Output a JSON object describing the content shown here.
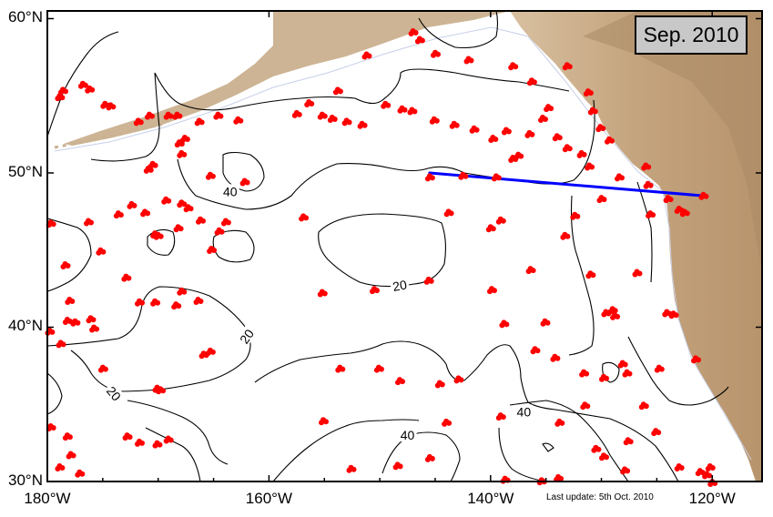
{
  "title_box": "Sep. 2010",
  "footer_note": "Last update: 5th Oct. 2010",
  "colors": {
    "float_marker": "#ff0000",
    "section_line": "#0000ff",
    "land": "#c8aa86",
    "land_high": "#a98a66",
    "contour": "#000000",
    "coastline_bathy": "#c8d0e8"
  },
  "map": {
    "lon_range": [
      -180,
      -115.5
    ],
    "lat_range": [
      30,
      60.5
    ],
    "lat_ticks": [
      {
        "lat": 60,
        "label": "60°N"
      },
      {
        "lat": 50,
        "label": "50°N"
      },
      {
        "lat": 40,
        "label": "40°N"
      },
      {
        "lat": 30,
        "label": "30°N"
      }
    ],
    "lon_ticks": [
      {
        "lon": -180,
        "label": "180°W"
      },
      {
        "lon": -160,
        "label": "160°W"
      },
      {
        "lon": -140,
        "label": "140°W"
      },
      {
        "lon": -120,
        "label": "120°W"
      }
    ],
    "contour_labels": [
      {
        "text": "40",
        "lon": -163.5,
        "lat": 48.8,
        "angle": 0
      },
      {
        "text": "20",
        "lon": -148.2,
        "lat": 42.7,
        "angle": -10
      },
      {
        "text": "20",
        "lon": -162.0,
        "lat": 39.4,
        "angle": -55
      },
      {
        "text": "20",
        "lon": -174.0,
        "lat": 35.7,
        "angle": 50
      },
      {
        "text": "40",
        "lon": -137.0,
        "lat": 34.5,
        "angle": 0
      },
      {
        "text": "40",
        "lon": -147.5,
        "lat": 33.0,
        "angle": 0
      }
    ],
    "section_line": {
      "start": [
        -145.5,
        50.0
      ],
      "end": [
        -120.5,
        48.5
      ]
    },
    "floats": [
      [
        -179.7,
        46.8
      ],
      [
        -178.6,
        55.4
      ],
      [
        -178.9,
        55.0
      ],
      [
        -176.8,
        55.8
      ],
      [
        -176.2,
        55.5
      ],
      [
        -174.8,
        54.5
      ],
      [
        -174.3,
        54.4
      ],
      [
        -171.8,
        53.4
      ],
      [
        -170.8,
        53.8
      ],
      [
        -169.1,
        53.8
      ],
      [
        -168.3,
        53.8
      ],
      [
        -168.1,
        52.0
      ],
      [
        -167.6,
        52.3
      ],
      [
        -167.9,
        51.3
      ],
      [
        -166.3,
        53.4
      ],
      [
        -164.6,
        53.8
      ],
      [
        -162.8,
        53.5
      ],
      [
        -165.3,
        49.9
      ],
      [
        -162.2,
        49.5
      ],
      [
        -170.5,
        50.6
      ],
      [
        -170.9,
        50.3
      ],
      [
        -172.4,
        48.0
      ],
      [
        -173.6,
        47.4
      ],
      [
        -171.2,
        47.5
      ],
      [
        -169.3,
        48.3
      ],
      [
        -167.9,
        48.1
      ],
      [
        -167.3,
        47.8
      ],
      [
        -176.3,
        46.9
      ],
      [
        -175.2,
        45.0
      ],
      [
        -170.3,
        46.1
      ],
      [
        -170.0,
        46.0
      ],
      [
        -168.2,
        46.5
      ],
      [
        -166.2,
        47.0
      ],
      [
        -163.9,
        46.9
      ],
      [
        -164.5,
        46.3
      ],
      [
        -165.2,
        45.1
      ],
      [
        -178.4,
        44.1
      ],
      [
        -178.0,
        41.8
      ],
      [
        -178.2,
        40.5
      ],
      [
        -177.5,
        40.4
      ],
      [
        -176.1,
        40.6
      ],
      [
        -175.8,
        40.0
      ],
      [
        -172.9,
        43.3
      ],
      [
        -170.3,
        41.7
      ],
      [
        -171.7,
        41.7
      ],
      [
        -168.4,
        41.5
      ],
      [
        -166.4,
        41.8
      ],
      [
        -167.9,
        42.4
      ],
      [
        -179.8,
        39.8
      ],
      [
        -178.8,
        39.0
      ],
      [
        -175.0,
        37.4
      ],
      [
        -169.8,
        36.0
      ],
      [
        -165.9,
        38.3
      ],
      [
        -165.3,
        38.5
      ],
      [
        -170.1,
        36.1
      ],
      [
        -172.8,
        33.0
      ],
      [
        -171.7,
        32.6
      ],
      [
        -170.1,
        32.5
      ],
      [
        -169.1,
        32.8
      ],
      [
        -179.7,
        33.6
      ],
      [
        -178.2,
        33.0
      ],
      [
        -177.9,
        31.8
      ],
      [
        -178.9,
        31.0
      ],
      [
        -177.1,
        30.6
      ],
      [
        -155.2,
        53.8
      ],
      [
        -154.3,
        53.6
      ],
      [
        -153.0,
        53.4
      ],
      [
        -151.6,
        53.2
      ],
      [
        -149.5,
        54.5
      ],
      [
        -148.0,
        54.2
      ],
      [
        -147.1,
        54.1
      ],
      [
        -145.1,
        53.5
      ],
      [
        -143.3,
        53.2
      ],
      [
        -141.5,
        52.9
      ],
      [
        -139.8,
        52.3
      ],
      [
        -138.0,
        51.0
      ],
      [
        -136.5,
        52.6
      ],
      [
        -135.3,
        53.6
      ],
      [
        -134.0,
        52.4
      ],
      [
        -133.1,
        51.7
      ],
      [
        -131.8,
        51.3
      ],
      [
        -131.1,
        50.5
      ],
      [
        -130.1,
        53.0
      ],
      [
        -129.3,
        52.2
      ],
      [
        -128.4,
        49.8
      ],
      [
        -126.0,
        50.5
      ],
      [
        -125.8,
        49.3
      ],
      [
        -124.0,
        48.4
      ],
      [
        -123.0,
        47.7
      ],
      [
        -122.5,
        47.5
      ],
      [
        -120.8,
        48.6
      ],
      [
        -145.0,
        57.8
      ],
      [
        -142.0,
        57.4
      ],
      [
        -138.0,
        57.0
      ],
      [
        -133.1,
        57.0
      ],
      [
        -131.2,
        55.3
      ],
      [
        -130.8,
        54.1
      ],
      [
        -134.8,
        54.3
      ],
      [
        -147.0,
        59.2
      ],
      [
        -146.4,
        58.7
      ],
      [
        -151.2,
        57.7
      ],
      [
        -153.8,
        55.4
      ],
      [
        -156.4,
        54.6
      ],
      [
        -157.5,
        53.9
      ],
      [
        -138.6,
        52.8
      ],
      [
        -137.5,
        51.2
      ],
      [
        -136.3,
        56.0
      ],
      [
        -145.5,
        49.8
      ],
      [
        -142.5,
        49.9
      ],
      [
        -139.5,
        49.8
      ],
      [
        -130.0,
        48.4
      ],
      [
        -125.6,
        47.4
      ],
      [
        -132.4,
        47.3
      ],
      [
        -133.3,
        46.0
      ],
      [
        -139.1,
        47.0
      ],
      [
        -140.0,
        46.5
      ],
      [
        -143.8,
        47.5
      ],
      [
        -156.9,
        47.2
      ],
      [
        -155.2,
        42.3
      ],
      [
        -150.5,
        42.5
      ],
      [
        -145.6,
        43.1
      ],
      [
        -139.9,
        42.5
      ],
      [
        -136.4,
        43.8
      ],
      [
        -135.1,
        40.4
      ],
      [
        -138.8,
        40.3
      ],
      [
        -131.0,
        43.5
      ],
      [
        -129.6,
        41.0
      ],
      [
        -129.0,
        41.2
      ],
      [
        -128.8,
        40.8
      ],
      [
        -126.8,
        43.6
      ],
      [
        -124.1,
        41.0
      ],
      [
        -123.5,
        40.9
      ],
      [
        -153.6,
        37.4
      ],
      [
        -150.1,
        37.4
      ],
      [
        -148.2,
        36.6
      ],
      [
        -144.6,
        36.4
      ],
      [
        -142.9,
        36.7
      ],
      [
        -136.0,
        38.6
      ],
      [
        -134.2,
        38.1
      ],
      [
        -131.6,
        37.1
      ],
      [
        -129.8,
        36.8
      ],
      [
        -128.1,
        37.7
      ],
      [
        -127.7,
        37.1
      ],
      [
        -124.8,
        37.4
      ],
      [
        -121.5,
        38.0
      ],
      [
        -131.5,
        35.0
      ],
      [
        -126.2,
        35.0
      ],
      [
        -155.1,
        34.0
      ],
      [
        -144.0,
        33.9
      ],
      [
        -139.1,
        34.3
      ],
      [
        -133.8,
        33.9
      ],
      [
        -127.6,
        32.7
      ],
      [
        -125.1,
        33.3
      ],
      [
        -130.5,
        32.2
      ],
      [
        -129.8,
        31.7
      ],
      [
        -127.9,
        30.8
      ],
      [
        -123.0,
        31.0
      ],
      [
        -121.1,
        30.7
      ],
      [
        -120.5,
        30.5
      ],
      [
        -120.2,
        31.0
      ],
      [
        -120.0,
        30.0
      ],
      [
        -152.6,
        30.9
      ],
      [
        -148.4,
        31.1
      ],
      [
        -145.5,
        31.6
      ],
      [
        -138.7,
        30.2
      ],
      [
        -133.9,
        30.3
      ],
      [
        -135.4,
        30.1
      ]
    ]
  }
}
